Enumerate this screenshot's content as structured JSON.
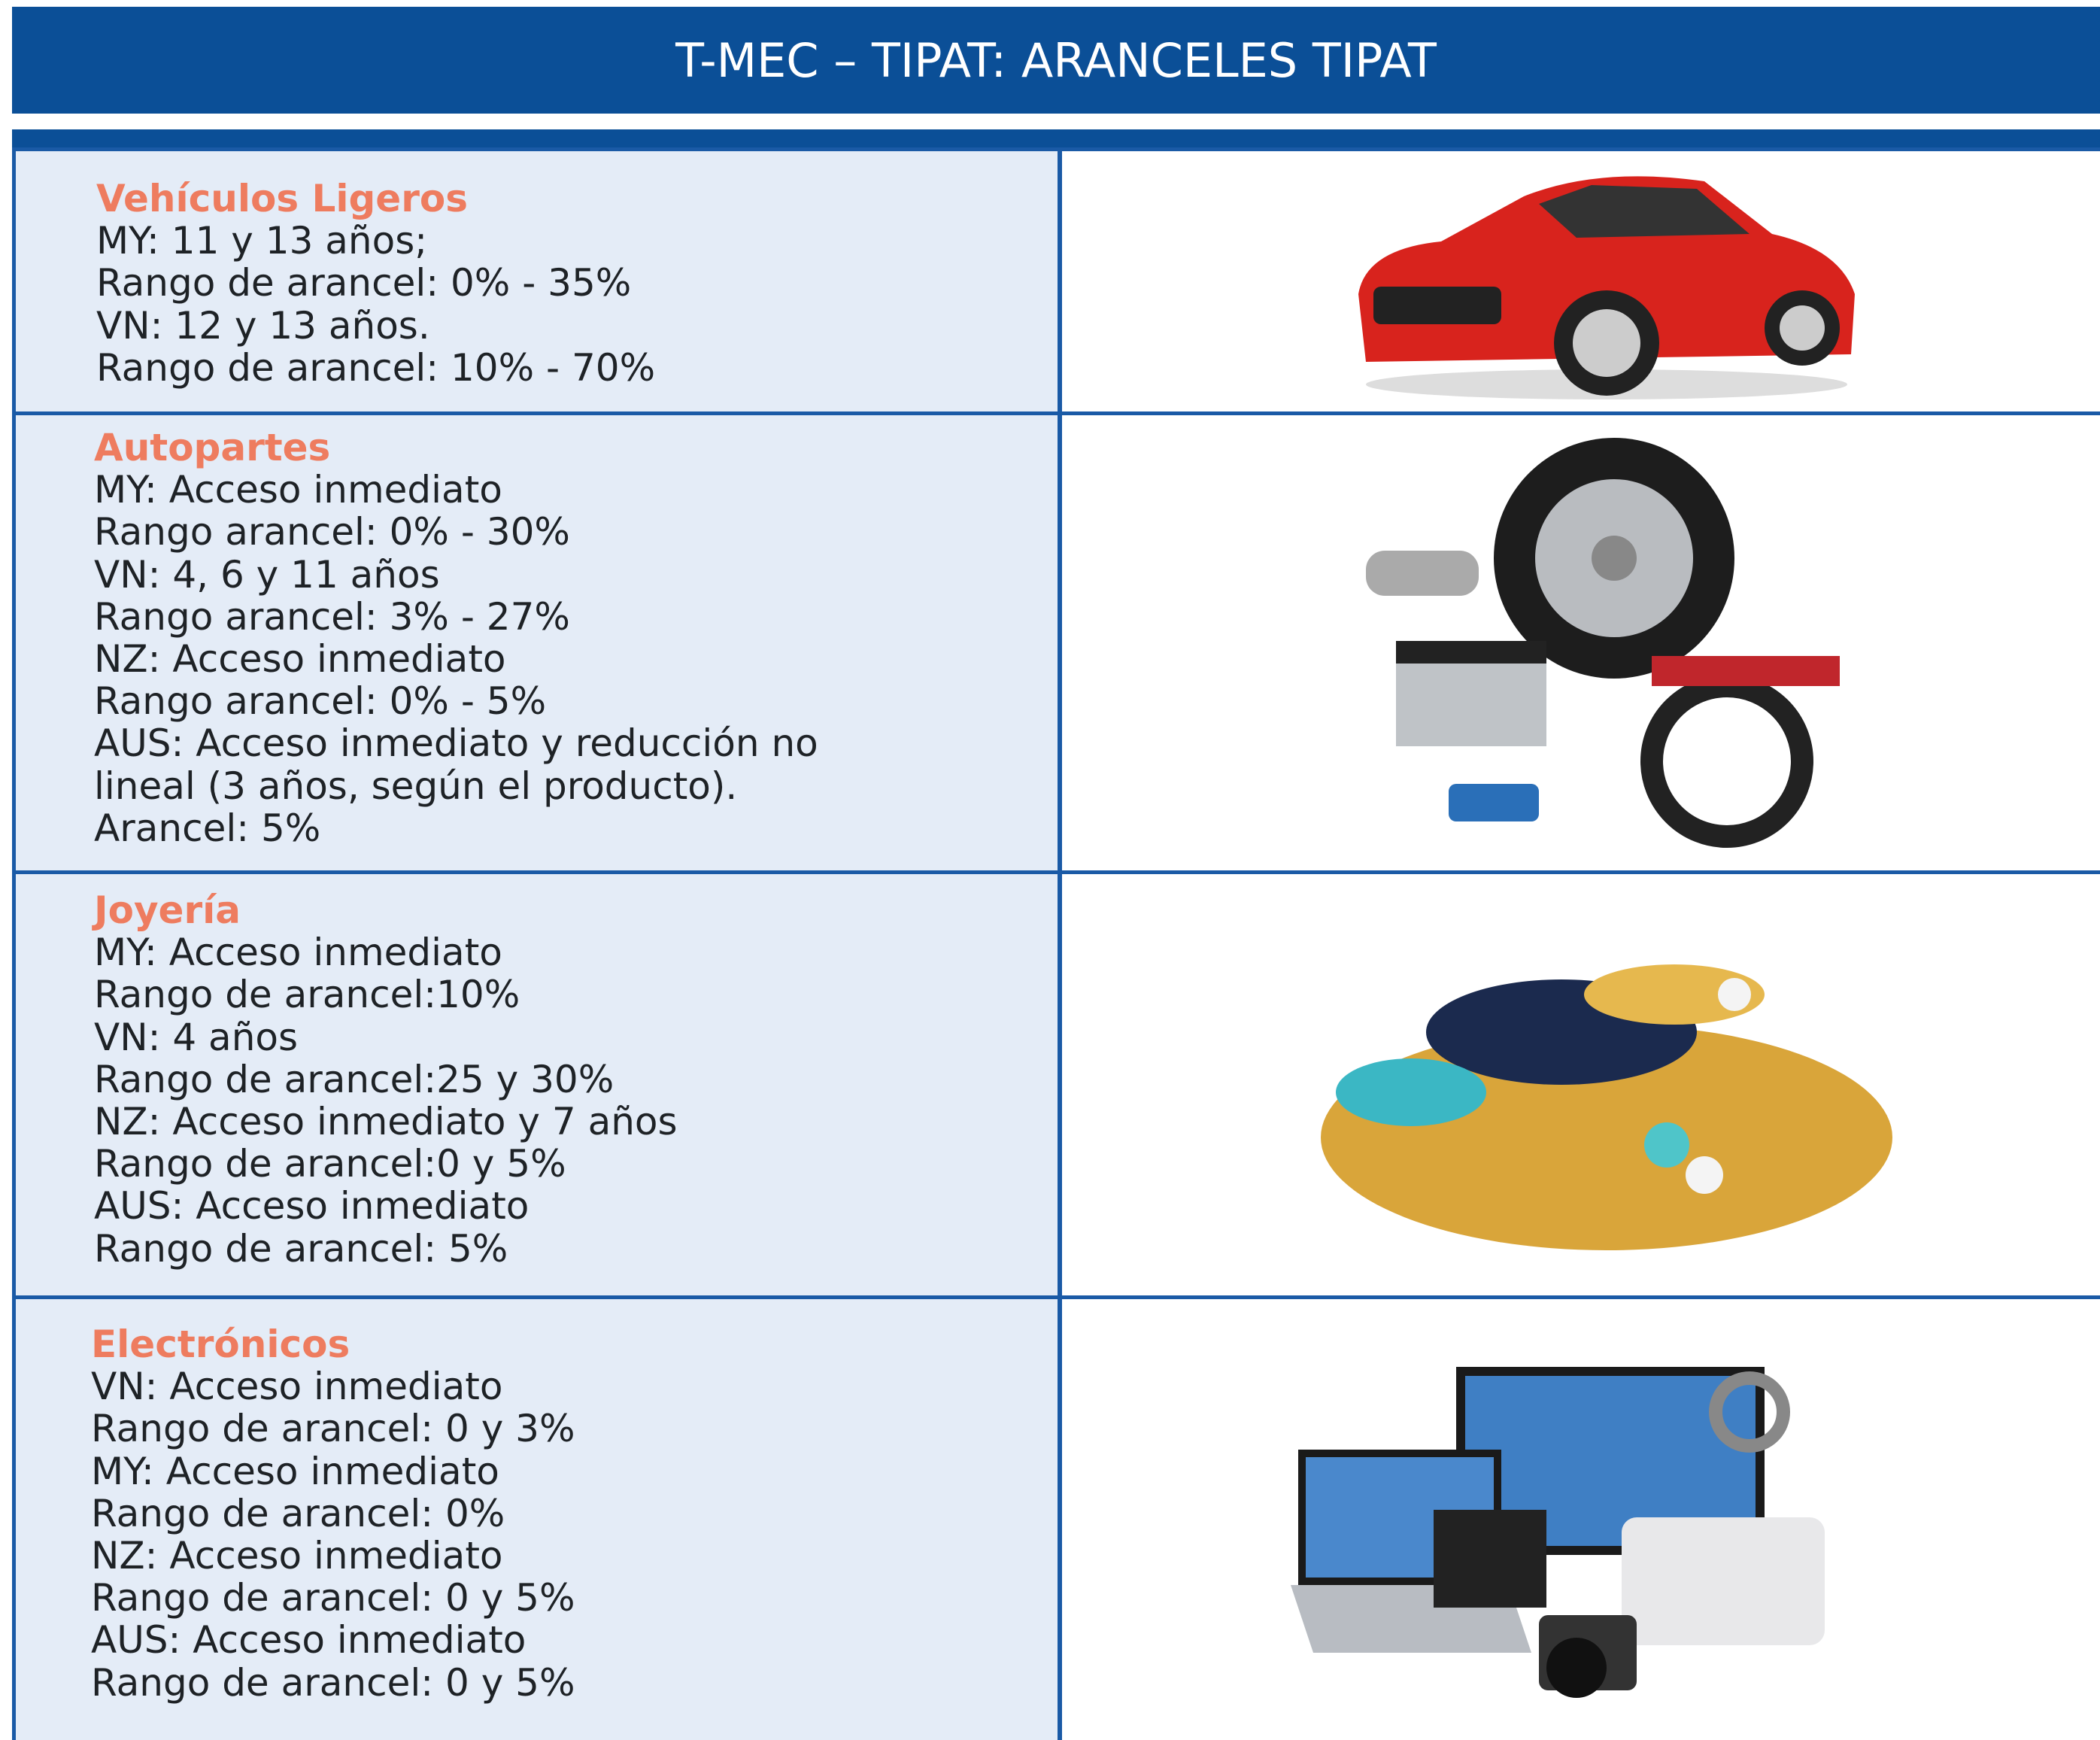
{
  "header": {
    "title": "T-MEC – TIPAT: ARANCELES TIPAT"
  },
  "rows": [
    {
      "title": "Vehículos Ligeros",
      "lines": [
        "MY: 11 y 13 años;",
        "Rango de arancel: 0% - 35%",
        "VN: 12 y 13 años.",
        "Rango de arancel: 10% - 70%"
      ]
    },
    {
      "title": "Autopartes",
      "lines": [
        "MY: Acceso inmediato",
        "Rango arancel: 0% - 30%",
        "VN: 4, 6 y 11 años",
        "Rango arancel: 3% - 27%",
        "NZ: Acceso inmediato",
        "Rango arancel: 0% - 5%",
        "AUS: Acceso inmediato y reducción no",
        "lineal (3 años, según el producto).",
        "Arancel: 5%"
      ]
    },
    {
      "title": "Joyería",
      "lines": [
        "MY: Acceso inmediato",
        "Rango de arancel:10%",
        "VN: 4 años",
        "Rango de arancel:25 y 30%",
        "NZ: Acceso inmediato y 7 años",
        "Rango de arancel:0 y 5%",
        "AUS: Acceso inmediato",
        "Rango de arancel: 5%"
      ]
    },
    {
      "title": "Electrónicos",
      "lines": [
        "VN: Acceso inmediato",
        "Rango de arancel: 0 y 3%",
        "MY: Acceso inmediato",
        "Rango de arancel: 0%",
        "NZ: Acceso inmediato",
        "Rango de arancel: 0 y 5%",
        "AUS: Acceso inmediato",
        "Rango de arancel: 0 y 5%"
      ]
    }
  ]
}
